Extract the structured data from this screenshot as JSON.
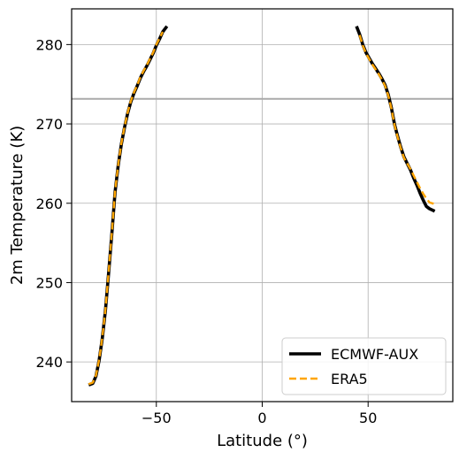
{
  "chart_data": {
    "type": "line",
    "title": "",
    "xlabel": "Latitude (°)",
    "ylabel": "2m Temperature (K)",
    "xlim": [
      -90,
      90
    ],
    "ylim": [
      235,
      284.5
    ],
    "xticks": [
      -50,
      0,
      50
    ],
    "xtick_labels": [
      "−50",
      "0",
      "50"
    ],
    "yticks": [
      240,
      250,
      260,
      270,
      280
    ],
    "ytick_labels": [
      "240",
      "250",
      "260",
      "270",
      "280"
    ],
    "grid": true,
    "legend_position": "lower-right",
    "reference_line": {
      "orientation": "horizontal",
      "y": 273.15,
      "color": "#aaaaaa"
    },
    "series": [
      {
        "name": "ECMWF-AUX",
        "color": "#000000",
        "style": "solid",
        "segments": [
          [
            [
              -82,
              237.1
            ],
            [
              -80,
              237.3
            ],
            [
              -78.5,
              238.2
            ],
            [
              -77,
              240.2
            ],
            [
              -75.5,
              243.0
            ],
            [
              -74,
              246.6
            ],
            [
              -72.5,
              251.3
            ],
            [
              -71,
              256.2
            ],
            [
              -69.5,
              261.4
            ],
            [
              -68,
              264.8
            ],
            [
              -66.5,
              267.5
            ],
            [
              -65,
              269.6
            ],
            [
              -63.5,
              271.4
            ],
            [
              -62,
              272.8
            ],
            [
              -60.5,
              273.9
            ],
            [
              -59,
              274.8
            ],
            [
              -57.5,
              275.8
            ],
            [
              -56,
              276.6
            ],
            [
              -54.5,
              277.3
            ],
            [
              -53,
              278.1
            ],
            [
              -51.5,
              278.9
            ],
            [
              -50,
              279.9
            ],
            [
              -48.5,
              280.7
            ],
            [
              -47,
              281.6
            ],
            [
              -45,
              282.3
            ]
          ],
          [
            [
              44.5,
              282.3
            ],
            [
              46,
              281.3
            ],
            [
              47.5,
              280.0
            ],
            [
              49,
              279.0
            ],
            [
              50.5,
              278.3
            ],
            [
              52,
              277.6
            ],
            [
              53.5,
              277.0
            ],
            [
              55,
              276.4
            ],
            [
              56.5,
              275.7
            ],
            [
              58,
              274.9
            ],
            [
              59.5,
              273.7
            ],
            [
              61,
              272.0
            ],
            [
              62.5,
              269.9
            ],
            [
              64,
              268.4
            ],
            [
              65.5,
              267.0
            ],
            [
              67,
              265.8
            ],
            [
              68.5,
              265.0
            ],
            [
              70,
              264.2
            ],
            [
              71.5,
              263.2
            ],
            [
              73,
              262.3
            ],
            [
              74.5,
              261.3
            ],
            [
              76,
              260.4
            ],
            [
              77.5,
              259.6
            ],
            [
              79,
              259.3
            ],
            [
              81.5,
              259.0
            ]
          ]
        ]
      },
      {
        "name": "ERA5",
        "color": "#ffa500",
        "style": "dashed",
        "segments": [
          [
            [
              -82,
              237.2
            ],
            [
              -80,
              237.4
            ],
            [
              -78.5,
              238.3
            ],
            [
              -77,
              240.3
            ],
            [
              -75.5,
              243.1
            ],
            [
              -74,
              246.7
            ],
            [
              -72.5,
              251.4
            ],
            [
              -71,
              256.3
            ],
            [
              -69.5,
              261.5
            ],
            [
              -68,
              264.9
            ],
            [
              -66.5,
              267.6
            ],
            [
              -65,
              269.7
            ],
            [
              -63.5,
              271.5
            ],
            [
              -62,
              272.9
            ],
            [
              -60.5,
              274.0
            ],
            [
              -59,
              274.9
            ],
            [
              -57.5,
              275.9
            ],
            [
              -56,
              276.7
            ],
            [
              -54.5,
              277.4
            ],
            [
              -53,
              278.2
            ],
            [
              -51.5,
              279.0
            ],
            [
              -50,
              280.0
            ],
            [
              -48.5,
              280.8
            ],
            [
              -47,
              281.6
            ]
          ],
          [
            [
              46,
              281.2
            ],
            [
              47.5,
              279.9
            ],
            [
              49,
              278.9
            ],
            [
              50.5,
              278.2
            ],
            [
              52,
              277.5
            ],
            [
              53.5,
              276.9
            ],
            [
              55,
              276.3
            ],
            [
              56.5,
              275.6
            ],
            [
              58,
              274.8
            ],
            [
              59.5,
              273.6
            ],
            [
              61,
              271.9
            ],
            [
              62.5,
              269.8
            ],
            [
              64,
              268.3
            ],
            [
              65.5,
              266.9
            ],
            [
              67,
              265.7
            ],
            [
              68.5,
              265.0
            ],
            [
              70,
              264.3
            ],
            [
              71.5,
              263.5
            ],
            [
              73,
              262.7
            ],
            [
              74.5,
              261.9
            ],
            [
              76,
              261.2
            ],
            [
              77.5,
              260.6
            ],
            [
              79,
              260.1
            ],
            [
              81.5,
              259.9
            ]
          ]
        ]
      }
    ]
  }
}
